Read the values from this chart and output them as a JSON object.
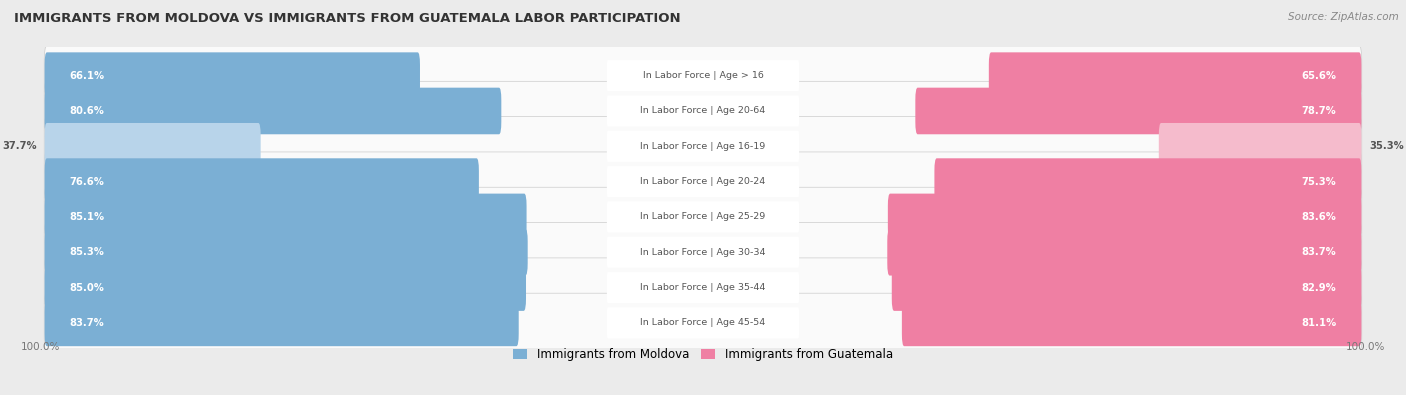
{
  "title": "IMMIGRANTS FROM MOLDOVA VS IMMIGRANTS FROM GUATEMALA LABOR PARTICIPATION",
  "source": "Source: ZipAtlas.com",
  "categories": [
    "In Labor Force | Age > 16",
    "In Labor Force | Age 20-64",
    "In Labor Force | Age 16-19",
    "In Labor Force | Age 20-24",
    "In Labor Force | Age 25-29",
    "In Labor Force | Age 30-34",
    "In Labor Force | Age 35-44",
    "In Labor Force | Age 45-54"
  ],
  "moldova_values": [
    66.1,
    80.6,
    37.7,
    76.6,
    85.1,
    85.3,
    85.0,
    83.7
  ],
  "guatemala_values": [
    65.6,
    78.7,
    35.3,
    75.3,
    83.6,
    83.7,
    82.9,
    81.1
  ],
  "moldova_color": "#7BAFD4",
  "moldova_color_light": "#B8D4EA",
  "guatemala_color": "#EF7FA3",
  "guatemala_color_light": "#F5BBCC",
  "background_color": "#EBEBEB",
  "row_bg_color": "#FAFAFA",
  "row_bg_shadow": "#DDDDDD",
  "legend_moldova": "Immigrants from Moldova",
  "legend_guatemala": "Immigrants from Guatemala",
  "low_threshold": 50.0
}
